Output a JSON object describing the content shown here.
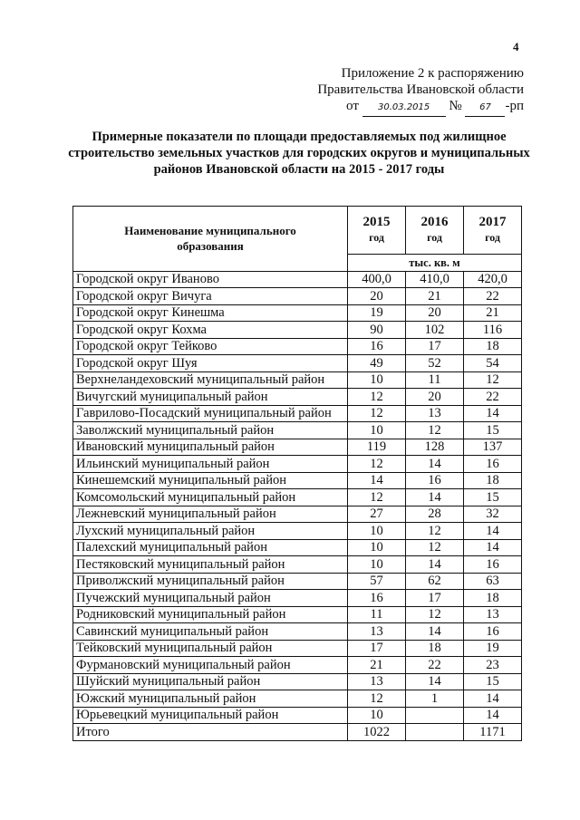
{
  "page_number": "4",
  "appendix": {
    "line1": "Приложение 2 к распоряжению",
    "line2": "Правительства Ивановской области",
    "from_label": "от",
    "date": "30.03.2015",
    "number_label": "№",
    "number": "67",
    "suffix": "-рп"
  },
  "title": "Примерные показатели по площади предоставляемых под жилищное строительство земельных участков для городских округов и муниципальных районов Ивановской области на 2015 - 2017 годы",
  "table": {
    "name_header": "Наименование муниципального образования",
    "years": [
      {
        "year": "2015",
        "label": "год"
      },
      {
        "year": "2016",
        "label": "год"
      },
      {
        "year": "2017",
        "label": "год"
      }
    ],
    "unit": "тыс. кв. м",
    "rows": [
      {
        "name": "Городской округ Иваново",
        "v": [
          "400,0",
          "410,0",
          "420,0"
        ]
      },
      {
        "name": "Городской округ Вичуга",
        "v": [
          "20",
          "21",
          "22"
        ]
      },
      {
        "name": "Городской округ Кинешма",
        "v": [
          "19",
          "20",
          "21"
        ]
      },
      {
        "name": "Городской округ Кохма",
        "v": [
          "90",
          "102",
          "116"
        ]
      },
      {
        "name": "Городской округ Тейково",
        "v": [
          "16",
          "17",
          "18"
        ]
      },
      {
        "name": "Городской округ Шуя",
        "v": [
          "49",
          "52",
          "54"
        ]
      },
      {
        "name": "Верхнеландеховский муниципальный район",
        "v": [
          "10",
          "11",
          "12"
        ]
      },
      {
        "name": "Вичугский муниципальный район",
        "v": [
          "12",
          "20",
          "22"
        ]
      },
      {
        "name": "Гаврилово-Посадский муниципальный район",
        "v": [
          "12",
          "13",
          "14"
        ]
      },
      {
        "name": "Заволжский муниципальный район",
        "v": [
          "10",
          "12",
          "15"
        ]
      },
      {
        "name": "Ивановский муниципальный район",
        "v": [
          "119",
          "128",
          "137"
        ]
      },
      {
        "name": "Ильинский муниципальный район",
        "v": [
          "12",
          "14",
          "16"
        ]
      },
      {
        "name": "Кинешемский муниципальный район",
        "v": [
          "14",
          "16",
          "18"
        ]
      },
      {
        "name": "Комсомольский муниципальный район",
        "v": [
          "12",
          "14",
          "15"
        ]
      },
      {
        "name": "Лежневский муниципальный район",
        "v": [
          "27",
          "28",
          "32"
        ]
      },
      {
        "name": "Лухский муниципальный район",
        "v": [
          "10",
          "12",
          "14"
        ]
      },
      {
        "name": "Палехский муниципальный район",
        "v": [
          "10",
          "12",
          "14"
        ]
      },
      {
        "name": "Пестяковский муниципальный район",
        "v": [
          "10",
          "14",
          "16"
        ]
      },
      {
        "name": "Приволжский муниципальный район",
        "v": [
          "57",
          "62",
          "63"
        ]
      },
      {
        "name": "Пучежский муниципальный район",
        "v": [
          "16",
          "17",
          "18"
        ]
      },
      {
        "name": "Родниковский муниципальный район",
        "v": [
          "11",
          "12",
          "13"
        ]
      },
      {
        "name": "Савинский муниципальный район",
        "v": [
          "13",
          "14",
          "16"
        ]
      },
      {
        "name": "Тейковский муниципальный район",
        "v": [
          "17",
          "18",
          "19"
        ]
      },
      {
        "name": "Фурмановский муниципальный район",
        "v": [
          "21",
          "22",
          "23"
        ]
      },
      {
        "name": "Шуйский муниципальный район",
        "v": [
          "13",
          "14",
          "15"
        ]
      },
      {
        "name": "Южский муниципальный район",
        "v": [
          "12",
          "1",
          "14"
        ]
      },
      {
        "name": "Юрьевецкий муниципальный район",
        "v": [
          "10",
          "",
          "14"
        ]
      },
      {
        "name": "Итого",
        "v": [
          "1022",
          "",
          "1171"
        ]
      }
    ]
  }
}
